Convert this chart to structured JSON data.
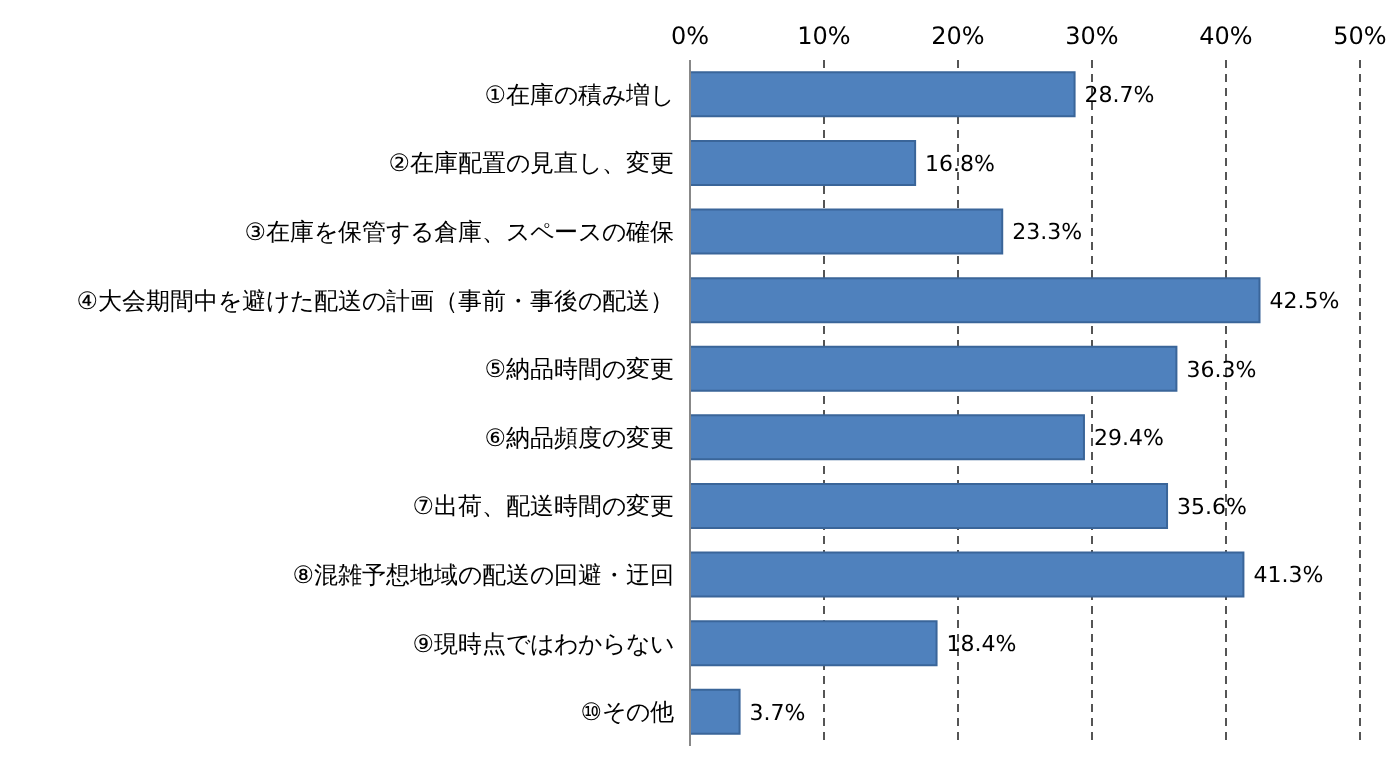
{
  "chart_data": {
    "type": "bar",
    "orientation": "horizontal",
    "categories": [
      "①在庫の積み増し",
      "②在庫配置の見直し、変更",
      "③在庫を保管する倉庫、スペースの確保",
      "④大会期間中を避けた配送の計画（事前・事後の配送）",
      "⑤納品時間の変更",
      "⑥納品頻度の変更",
      "⑦出荷、配送時間の変更",
      "⑧混雑予想地域の配送の回避・迂回",
      "⑨現時点ではわからない",
      "⑩その他"
    ],
    "values": [
      28.7,
      16.8,
      23.3,
      42.5,
      36.3,
      29.4,
      35.6,
      41.3,
      18.4,
      3.7
    ],
    "value_labels": [
      "28.7%",
      "16.8%",
      "23.3%",
      "42.5%",
      "36.3%",
      "29.4%",
      "35.6%",
      "41.3%",
      "18.4%",
      "3.7%"
    ],
    "color": "#4f81bd",
    "xlim": [
      0,
      50
    ],
    "xticks": [
      {
        "value": 0,
        "label": "0%"
      },
      {
        "value": 10,
        "label": "10%"
      },
      {
        "value": 20,
        "label": "20%"
      },
      {
        "value": 30,
        "label": "30%"
      },
      {
        "value": 40,
        "label": "40%"
      },
      {
        "value": 50,
        "label": "50%"
      }
    ],
    "grid": "x",
    "line_style": "dashed",
    "legend": false
  }
}
